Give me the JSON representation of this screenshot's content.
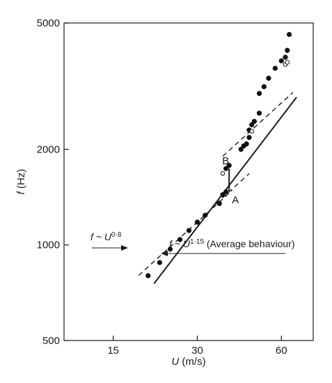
{
  "chart_data": {
    "type": "scatter",
    "title": "",
    "xlabel_var": "U",
    "xlabel_unit": " (m/s)",
    "ylabel_var": "f",
    "ylabel_unit": " (Hz)",
    "x_scale": "log",
    "y_scale": "log",
    "xlim": [
      10,
      78
    ],
    "ylim": [
      500,
      5000
    ],
    "xticks": [
      15,
      30,
      60
    ],
    "yticks": [
      500,
      1000,
      2000,
      5000
    ],
    "grid": false,
    "legend": "none",
    "series": [
      {
        "marker": "filled-circle",
        "points": [
          [
            20,
            800
          ],
          [
            22,
            880
          ],
          [
            24,
            970
          ],
          [
            26,
            1040
          ],
          [
            28,
            1110
          ],
          [
            30,
            1180
          ],
          [
            32,
            1240
          ],
          [
            36,
            1350
          ],
          [
            37,
            1440
          ],
          [
            38,
            1470
          ],
          [
            38,
            1740
          ],
          [
            39,
            1780
          ],
          [
            43,
            2000
          ],
          [
            44,
            2050
          ],
          [
            45,
            2080
          ],
          [
            46,
            2300
          ],
          [
            46,
            2180
          ],
          [
            47,
            2390
          ],
          [
            48,
            2450
          ],
          [
            50,
            2600
          ],
          [
            50,
            3000
          ],
          [
            52,
            3150
          ],
          [
            54,
            3350
          ],
          [
            57,
            3600
          ],
          [
            60,
            3800
          ],
          [
            62,
            3900
          ],
          [
            63,
            4100
          ],
          [
            64,
            4600
          ]
        ]
      },
      {
        "marker": "open-circle",
        "points": [
          [
            37,
            1680
          ],
          [
            47,
            2280
          ],
          [
            62,
            3700
          ],
          [
            63,
            3760
          ]
        ]
      }
    ],
    "fit_lines": [
      {
        "name": "average",
        "style": "solid",
        "exponent": 1.15,
        "x_range": [
          21,
          68
        ],
        "through": [
          40,
          1585
        ]
      },
      {
        "name": "low",
        "style": "dashed",
        "exponent": 0.8,
        "x_range": [
          18.5,
          40
        ],
        "through": [
          30,
          1180
        ]
      },
      {
        "name": "mid",
        "style": "dashed",
        "exponent": 0.8,
        "x_range": [
          35,
          46
        ],
        "through": [
          40,
          1500
        ]
      },
      {
        "name": "high",
        "style": "dashed",
        "exponent": 0.8,
        "x_range": [
          37,
          66
        ],
        "through": [
          50,
          2420
        ]
      }
    ],
    "marked_points": [
      {
        "label": "A",
        "x": 39,
        "y": 1480
      },
      {
        "label": "B",
        "x": 39,
        "y": 1740
      }
    ],
    "annotations": [
      {
        "id": "low",
        "prefix": "f",
        "tilde": " ~ ",
        "var": "U",
        "exp": "0·8",
        "suffix": ""
      },
      {
        "id": "avg",
        "prefix": "f",
        "tilde": " ~ ",
        "var": "U",
        "exp": "1·15",
        "suffix": " (Average behaviour)"
      }
    ]
  }
}
